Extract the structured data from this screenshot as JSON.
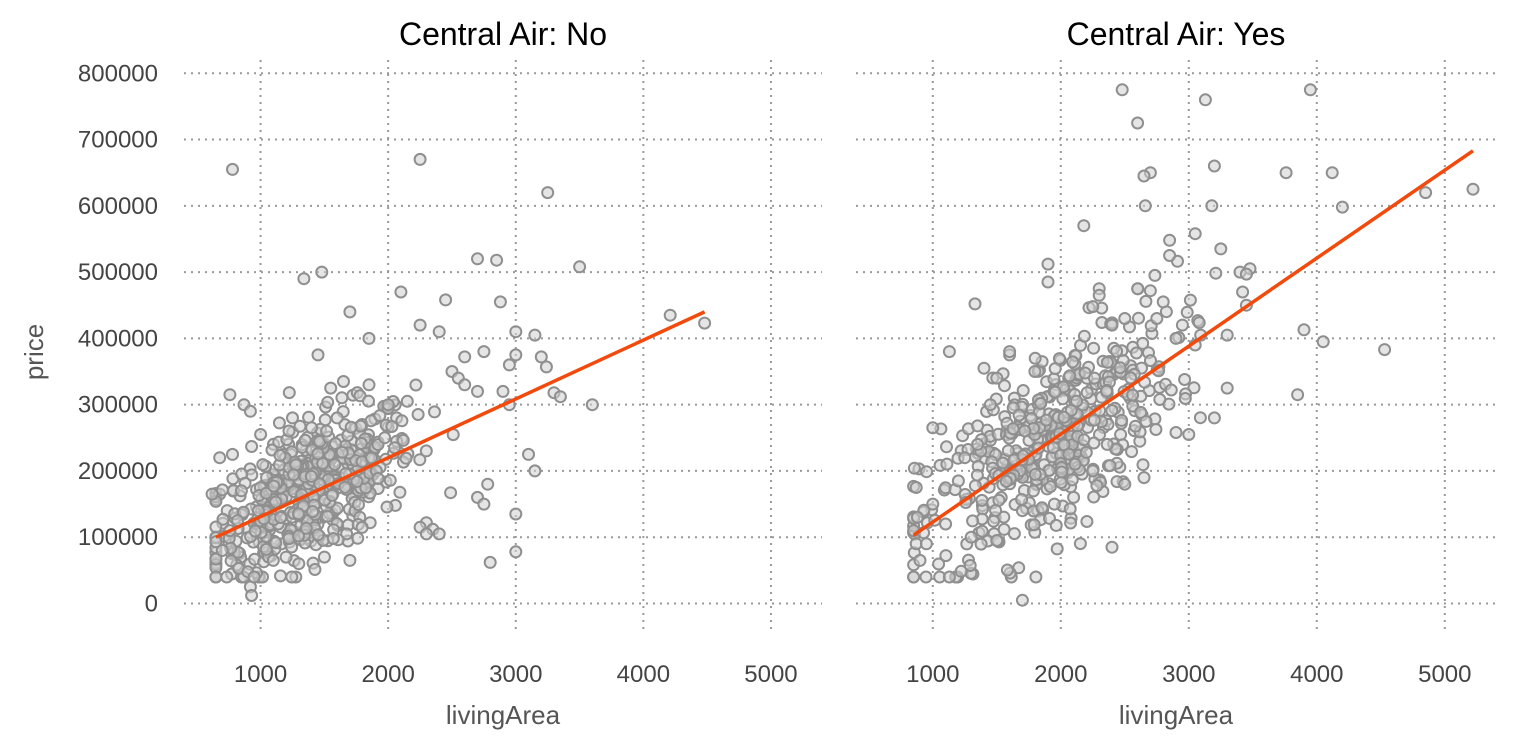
{
  "chart_data": [
    {
      "type": "scatter",
      "title": "Central Air: No",
      "xlabel": "livingArea",
      "ylabel": "price",
      "xlim": [
        400,
        5400
      ],
      "ylim": [
        -40000,
        820000
      ],
      "xticks": [
        "1000",
        "2000",
        "3000",
        "4000",
        "5000"
      ],
      "yticks": [
        "0",
        "100000",
        "200000",
        "300000",
        "400000",
        "500000",
        "600000",
        "700000",
        "800000"
      ],
      "grid": true,
      "colors": {
        "points": "#8f8f8f",
        "fit": "#f24a0c"
      },
      "fit_line": {
        "x": [
          650,
          4480
        ],
        "y": [
          100000,
          440000
        ]
      },
      "cluster": {
        "center": [
          1400,
          170000
        ],
        "spread": [
          400,
          50000
        ],
        "count": 520,
        "xmin": 650,
        "xmax": 2800,
        "slope": 88.8
      },
      "points": [
        [
          780,
          655000
        ],
        [
          2250,
          670000
        ],
        [
          3250,
          620000
        ],
        [
          1340,
          490000
        ],
        [
          1480,
          500000
        ],
        [
          2700,
          520000
        ],
        [
          2850,
          518000
        ],
        [
          3500,
          508000
        ],
        [
          2100,
          470000
        ],
        [
          2450,
          458000
        ],
        [
          2880,
          455000
        ],
        [
          1700,
          440000
        ],
        [
          4210,
          435000
        ],
        [
          4480,
          423000
        ],
        [
          3000,
          410000
        ],
        [
          3150,
          405000
        ],
        [
          2250,
          420000
        ],
        [
          2400,
          410000
        ],
        [
          1850,
          400000
        ],
        [
          2750,
          380000
        ],
        [
          2600,
          372000
        ],
        [
          3000,
          375000
        ],
        [
          3200,
          372000
        ],
        [
          3240,
          357000
        ],
        [
          2950,
          360000
        ],
        [
          3300,
          318000
        ],
        [
          3350,
          312000
        ],
        [
          3600,
          300000
        ],
        [
          3100,
          225000
        ],
        [
          3150,
          200000
        ],
        [
          2900,
          320000
        ],
        [
          2950,
          300000
        ],
        [
          2700,
          320000
        ],
        [
          2780,
          180000
        ],
        [
          2700,
          160000
        ],
        [
          2750,
          150000
        ],
        [
          3000,
          135000
        ],
        [
          2800,
          62000
        ],
        [
          3000,
          78000
        ],
        [
          2350,
          112000
        ],
        [
          2250,
          115000
        ],
        [
          2300,
          105000
        ],
        [
          2400,
          105000
        ],
        [
          1700,
          65000
        ],
        [
          900,
          48000
        ],
        [
          920,
          25000
        ],
        [
          930,
          12000
        ],
        [
          950,
          40000
        ],
        [
          700,
          80000
        ],
        [
          620,
          165000
        ],
        [
          680,
          220000
        ],
        [
          760,
          315000
        ],
        [
          780,
          225000
        ],
        [
          870,
          300000
        ],
        [
          920,
          290000
        ],
        [
          1000,
          255000
        ],
        [
          1450,
          375000
        ],
        [
          1650,
          335000
        ],
        [
          1550,
          325000
        ],
        [
          1850,
          330000
        ],
        [
          2000,
          300000
        ],
        [
          2150,
          305000
        ],
        [
          2500,
          350000
        ],
        [
          2550,
          340000
        ],
        [
          2600,
          330000
        ],
        [
          1500,
          70000
        ],
        [
          1200,
          70000
        ],
        [
          1100,
          65000
        ],
        [
          1300,
          60000
        ],
        [
          820,
          125000
        ],
        [
          760,
          110000
        ],
        [
          850,
          170000
        ],
        [
          1250,
          280000
        ],
        [
          1400,
          265000
        ],
        [
          1600,
          280000
        ]
      ]
    },
    {
      "type": "scatter",
      "title": "Central Air: Yes",
      "xlabel": "livingArea",
      "xlim": [
        400,
        5400
      ],
      "ylim": [
        -40000,
        820000
      ],
      "xticks": [
        "1000",
        "2000",
        "3000",
        "4000",
        "5000"
      ],
      "yticks": [
        "0",
        "100000",
        "200000",
        "300000",
        "400000",
        "500000",
        "600000",
        "700000",
        "800000"
      ],
      "grid": true,
      "colors": {
        "points": "#8f8f8f",
        "fit": "#f24a0c"
      },
      "fit_line": {
        "x": [
          850,
          5220
        ],
        "y": [
          103000,
          683000
        ]
      },
      "cluster": {
        "center": [
          1900,
          240000
        ],
        "spread": [
          500,
          70000
        ],
        "count": 480,
        "xmin": 850,
        "xmax": 3500,
        "slope": 132.7
      },
      "points": [
        [
          2480,
          775000
        ],
        [
          3950,
          775000
        ],
        [
          3130,
          760000
        ],
        [
          2600,
          725000
        ],
        [
          2700,
          650000
        ],
        [
          3200,
          660000
        ],
        [
          3760,
          650000
        ],
        [
          4120,
          650000
        ],
        [
          2650,
          645000
        ],
        [
          5220,
          625000
        ],
        [
          4850,
          620000
        ],
        [
          4200,
          598000
        ],
        [
          2660,
          600000
        ],
        [
          3180,
          600000
        ],
        [
          2180,
          570000
        ],
        [
          3050,
          558000
        ],
        [
          2850,
          548000
        ],
        [
          3250,
          535000
        ],
        [
          2850,
          525000
        ],
        [
          1900,
          512000
        ],
        [
          3400,
          500000
        ],
        [
          3450,
          497000
        ],
        [
          1900,
          485000
        ],
        [
          2600,
          475000
        ],
        [
          2300,
          475000
        ],
        [
          3420,
          470000
        ],
        [
          3450,
          450000
        ],
        [
          2300,
          465000
        ],
        [
          2250,
          448000
        ],
        [
          3850,
          315000
        ],
        [
          3900,
          413000
        ],
        [
          4530,
          383000
        ],
        [
          4050,
          395000
        ],
        [
          3200,
          280000
        ],
        [
          3300,
          325000
        ],
        [
          2400,
          85000
        ],
        [
          1700,
          5000
        ],
        [
          900,
          65000
        ],
        [
          870,
          90000
        ],
        [
          950,
          90000
        ],
        [
          1000,
          265000
        ],
        [
          1130,
          380000
        ],
        [
          1330,
          452000
        ],
        [
          870,
          175000
        ],
        [
          880,
          130000
        ],
        [
          2900,
          258000
        ],
        [
          3000,
          255000
        ],
        [
          2900,
          400000
        ],
        [
          3300,
          405000
        ],
        [
          2950,
          420000
        ],
        [
          1800,
          370000
        ],
        [
          1600,
          375000
        ],
        [
          1500,
          340000
        ],
        [
          1400,
          355000
        ],
        [
          1350,
          268000
        ],
        [
          1350,
          240000
        ],
        [
          1450,
          300000
        ],
        [
          1600,
          380000
        ],
        [
          2400,
          420000
        ],
        [
          2500,
          430000
        ],
        [
          2800,
          455000
        ],
        [
          2750,
          430000
        ],
        [
          3050,
          390000
        ],
        [
          2500,
          180000
        ],
        [
          2650,
          190000
        ],
        [
          2100,
          160000
        ],
        [
          1950,
          150000
        ],
        [
          2250,
          200000
        ],
        [
          1700,
          140000
        ],
        [
          1500,
          95000
        ],
        [
          1300,
          100000
        ],
        [
          1100,
          120000
        ],
        [
          1000,
          150000
        ],
        [
          1200,
          185000
        ],
        [
          1250,
          220000
        ]
      ]
    }
  ]
}
